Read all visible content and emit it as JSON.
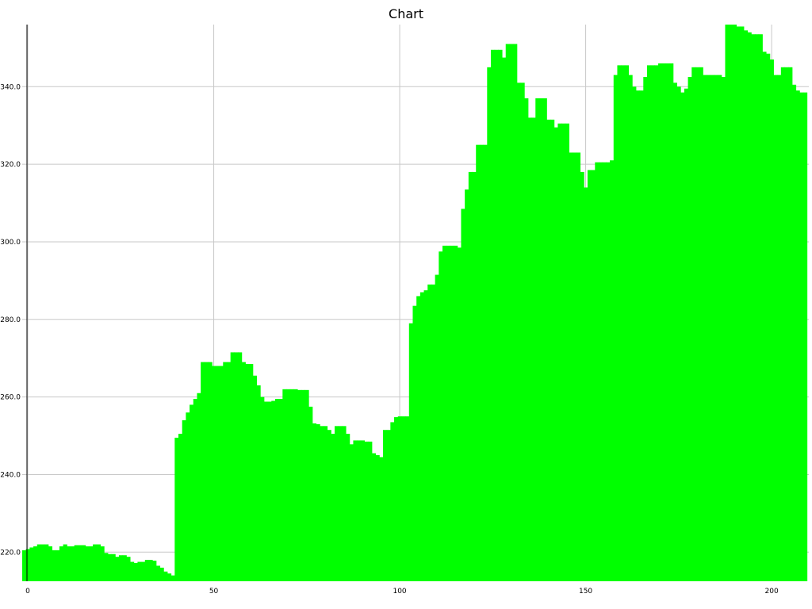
{
  "chart_data": {
    "type": "bar",
    "title": "Chart",
    "xlabel": "",
    "ylabel": "",
    "series_color": "#00ff00",
    "grid": true,
    "legend": "none",
    "xlim": [
      -1.5,
      210
    ],
    "ylim": [
      212.5,
      356
    ],
    "x_ticks": [
      0,
      50,
      100,
      150,
      200
    ],
    "y_ticks": [
      220.0,
      240.0,
      260.0,
      280.0,
      300.0,
      320.0,
      340.0
    ],
    "x_tick_labels": [
      "0",
      "50",
      "100",
      "150",
      "200"
    ],
    "y_tick_labels": [
      "220.0",
      "240.0",
      "260.0",
      "280.0",
      "300.0",
      "320.0",
      "340.0"
    ],
    "x_start": -1.5,
    "x_step": 1,
    "values": [
      220.5,
      220.8,
      221.2,
      221.5,
      222.0,
      222.0,
      222.0,
      221.5,
      220.5,
      220.5,
      221.5,
      222.0,
      221.5,
      221.5,
      221.8,
      221.8,
      221.8,
      221.5,
      221.5,
      222.0,
      222.0,
      221.5,
      219.8,
      219.5,
      219.5,
      218.8,
      219.2,
      219.2,
      218.8,
      217.5,
      217.2,
      217.5,
      217.5,
      218.0,
      218.0,
      217.8,
      216.5,
      216.0,
      215.0,
      214.5,
      214.0,
      249.5,
      250.5,
      254.0,
      256.0,
      258.0,
      259.5,
      261.0,
      269.0,
      269.0,
      269.0,
      268.0,
      268.0,
      268.0,
      269.0,
      269.0,
      271.5,
      271.5,
      271.5,
      269.0,
      268.5,
      268.5,
      265.5,
      263.0,
      260.0,
      258.8,
      258.8,
      259.0,
      259.5,
      259.5,
      262.0,
      262.0,
      262.0,
      262.0,
      261.8,
      261.8,
      261.8,
      257.5,
      253.2,
      253.0,
      252.5,
      252.5,
      251.5,
      250.5,
      252.5,
      252.5,
      252.5,
      250.5,
      247.8,
      248.8,
      248.8,
      248.8,
      248.5,
      248.5,
      245.5,
      245.0,
      244.5,
      251.5,
      251.5,
      253.5,
      254.8,
      255.0,
      255.0,
      255.0,
      279.0,
      283.5,
      286.0,
      287.0,
      287.5,
      289.0,
      289.0,
      291.5,
      297.5,
      299.0,
      299.0,
      299.0,
      299.0,
      298.5,
      308.5,
      313.5,
      318.0,
      318.0,
      325.0,
      325.0,
      325.0,
      345.0,
      349.5,
      349.5,
      349.5,
      347.5,
      351.0,
      351.0,
      351.0,
      341.0,
      341.0,
      337.0,
      332.0,
      332.0,
      337.0,
      337.0,
      337.0,
      331.5,
      331.5,
      329.5,
      330.5,
      330.5,
      330.5,
      323.0,
      323.0,
      323.0,
      318.0,
      314.0,
      318.5,
      318.5,
      320.5,
      320.5,
      320.5,
      320.5,
      321.0,
      343.0,
      345.5,
      345.5,
      345.5,
      343.0,
      340.0,
      339.0,
      339.0,
      342.5,
      345.5,
      345.5,
      345.5,
      346.0,
      346.0,
      346.0,
      346.0,
      341.0,
      340.0,
      338.5,
      339.5,
      342.5,
      345.0,
      345.0,
      345.0,
      343.0,
      343.0,
      343.0,
      343.0,
      343.0,
      342.5,
      356.0,
      356.0,
      356.0,
      355.5,
      355.5,
      354.5,
      354.0,
      353.5,
      353.5,
      353.5,
      349.0,
      348.5,
      347.0,
      343.0,
      343.0,
      345.0,
      345.0,
      345.0,
      340.5,
      339.0,
      338.5,
      338.5
    ]
  }
}
